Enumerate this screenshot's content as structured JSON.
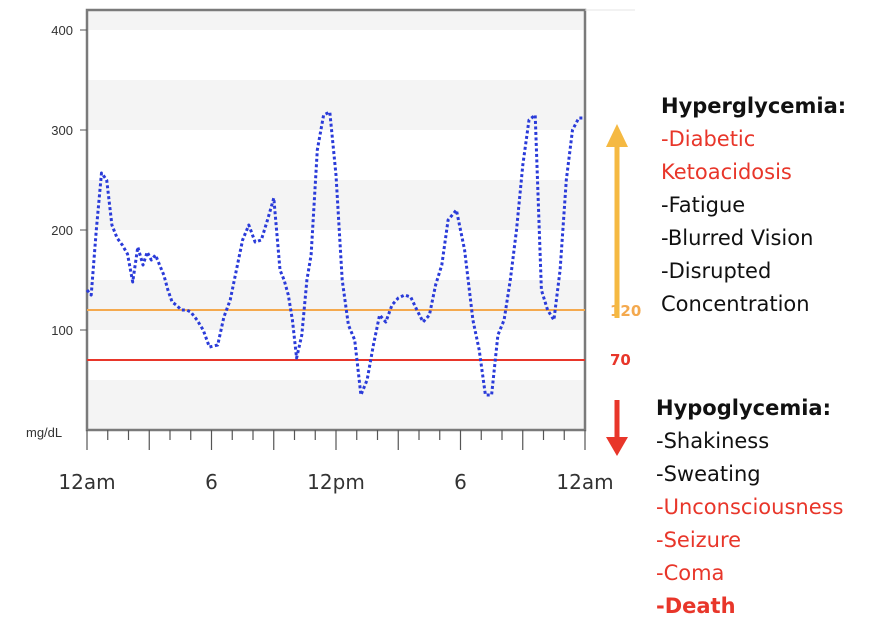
{
  "chart_data": {
    "type": "line",
    "unit_label": "mg/dL",
    "x_ticks": [
      "12am",
      "6",
      "12pm",
      "6",
      "12am"
    ],
    "x_tick_hours": [
      0,
      6,
      12,
      18,
      24
    ],
    "y_ticks": [
      100,
      200,
      300,
      400
    ],
    "ylim": [
      0,
      420
    ],
    "xlim": [
      0,
      24
    ],
    "series": [
      {
        "color": "#2a3bd9",
        "style": "dotted",
        "x": [
          0.0,
          0.2,
          0.45,
          0.7,
          0.95,
          1.2,
          1.45,
          1.7,
          1.95,
          2.2,
          2.45,
          2.7,
          2.9,
          3.1,
          3.3,
          3.5,
          3.7,
          3.9,
          4.1,
          4.3,
          4.55,
          4.8,
          5.0,
          5.3,
          5.6,
          5.9,
          6.3,
          6.6,
          6.9,
          7.2,
          7.5,
          7.8,
          8.1,
          8.4,
          8.7,
          9.0,
          9.3,
          9.5,
          9.7,
          9.9,
          10.1,
          10.35,
          10.6,
          10.8,
          11.1,
          11.4,
          11.7,
          12.0,
          12.3,
          12.6,
          12.9,
          13.2,
          13.5,
          13.8,
          14.1,
          14.4,
          14.7,
          15.0,
          15.3,
          15.6,
          15.9,
          16.2,
          16.5,
          16.8,
          17.1,
          17.4,
          17.8,
          18.2,
          18.6,
          18.9,
          19.2,
          19.5,
          19.8,
          20.1,
          20.4,
          20.7,
          21.0,
          21.3,
          21.6,
          21.9,
          22.2,
          22.5,
          22.8,
          23.1,
          23.4,
          23.7,
          24.0
        ],
        "values": [
          140,
          135,
          200,
          257,
          250,
          205,
          192,
          185,
          176,
          148,
          183,
          165,
          178,
          170,
          175,
          165,
          155,
          140,
          128,
          125,
          120,
          120,
          118,
          110,
          100,
          83,
          85,
          113,
          130,
          160,
          190,
          205,
          188,
          190,
          210,
          232,
          160,
          150,
          135,
          110,
          72,
          95,
          150,
          175,
          280,
          315,
          318,
          255,
          150,
          105,
          90,
          35,
          50,
          85,
          115,
          108,
          125,
          132,
          135,
          133,
          120,
          108,
          115,
          145,
          165,
          210,
          220,
          180,
          110,
          80,
          35,
          35,
          95,
          110,
          150,
          200,
          265,
          310,
          315,
          140,
          120,
          110,
          160,
          250,
          300,
          312,
          312
        ]
      }
    ],
    "reference_lines": [
      {
        "value": 120,
        "label": "120",
        "color": "#f4a94e"
      },
      {
        "value": 70,
        "label": "70",
        "color": "#e8362a"
      }
    ],
    "arrows": {
      "up_color": "#f5b942",
      "down_color": "#e8362a"
    },
    "band_colors": [
      "#f4f4f4",
      "#ffffff"
    ],
    "grid": false
  },
  "hyper": {
    "heading": "Hyperglycemia:",
    "items": [
      {
        "text": "-Diabetic",
        "severe": true
      },
      {
        "text": "Ketoacidosis",
        "severe": true
      },
      {
        "text": "-Fatigue",
        "severe": false
      },
      {
        "text": "-Blurred Vision",
        "severe": false
      },
      {
        "text": "-Disrupted",
        "severe": false
      },
      {
        "text": "Concentration",
        "severe": false
      }
    ]
  },
  "hypo": {
    "heading": "Hypoglycemia:",
    "items": [
      {
        "text": "-Shakiness",
        "severe": false
      },
      {
        "text": "-Sweating",
        "severe": false
      },
      {
        "text": "-Unconsciousness",
        "severe": true
      },
      {
        "text": "-Seizure",
        "severe": true
      },
      {
        "text": "-Coma",
        "severe": true
      },
      {
        "text": "-Death",
        "severe": true,
        "bold": true
      }
    ]
  }
}
